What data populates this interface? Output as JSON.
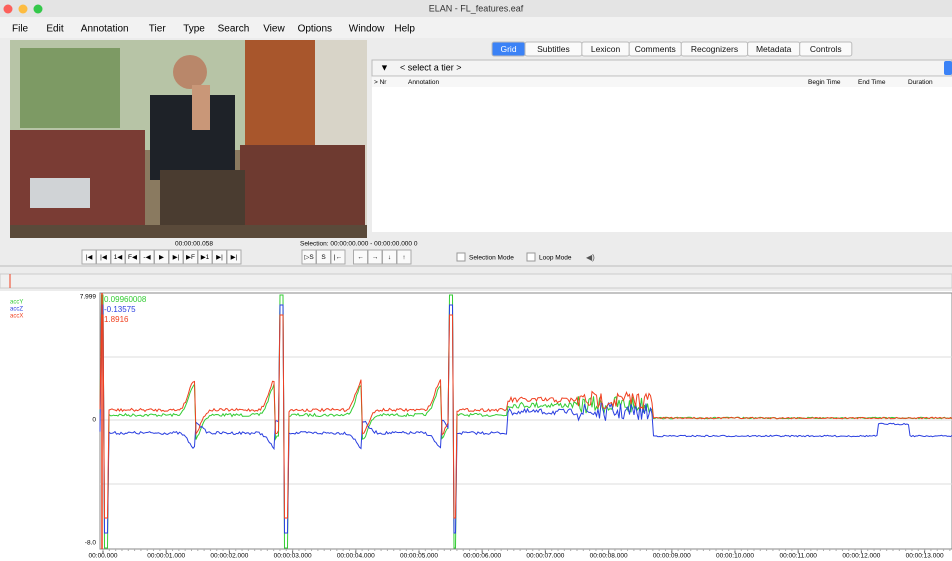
{
  "window": {
    "title": "ELAN - FL_features.eaf"
  },
  "menu": [
    "File",
    "Edit",
    "Annotation",
    "Tier",
    "Type",
    "Search",
    "View",
    "Options",
    "Window",
    "Help"
  ],
  "tabs": [
    "Grid",
    "Subtitles",
    "Lexicon",
    "Comments",
    "Recognizers",
    "Metadata",
    "Controls"
  ],
  "tier_select": "< select a tier >",
  "table": {
    "columns": [
      "> Nr",
      "Annotation",
      "Begin Time",
      "End Time",
      "Duration"
    ]
  },
  "player": {
    "time": "00:00:00.058",
    "selection": "Selection: 00:00:00.000 - 00:00:00.000  0",
    "buttons": [
      "|◀",
      "|◀",
      "1◀",
      "F◀",
      "-◀",
      "▶",
      "▶|",
      "▶F",
      "▶1",
      "▶|",
      "▶|"
    ],
    "buttons2": [
      "▷S",
      "S",
      "|←",
      "←",
      "→",
      "↓",
      "↑"
    ],
    "selection_mode": "Selection Mode",
    "loop_mode": "Loop Mode"
  },
  "signal": {
    "tracks": [
      {
        "name": "accY",
        "value": "0.09960008",
        "color": "#33cc33"
      },
      {
        "name": "accZ",
        "value": "-0.13575",
        "color": "#2a3fe0"
      },
      {
        "name": "accX",
        "value": "1.8916",
        "color": "#f04020"
      }
    ],
    "y_labels": [
      "7.999",
      "0",
      "-8.0"
    ],
    "x_labels": [
      "00:00.000",
      "00:00:01.000",
      "00:00:02.000",
      "00:00:03.000",
      "00:00:04.000",
      "00:00:05.000",
      "00:00:06.000",
      "00:00:07.000",
      "00:00:08.000",
      "00:00:09.000",
      "00:00:10.000",
      "00:00:11.000",
      "00:00:12.000",
      "00:00:13.000"
    ]
  }
}
